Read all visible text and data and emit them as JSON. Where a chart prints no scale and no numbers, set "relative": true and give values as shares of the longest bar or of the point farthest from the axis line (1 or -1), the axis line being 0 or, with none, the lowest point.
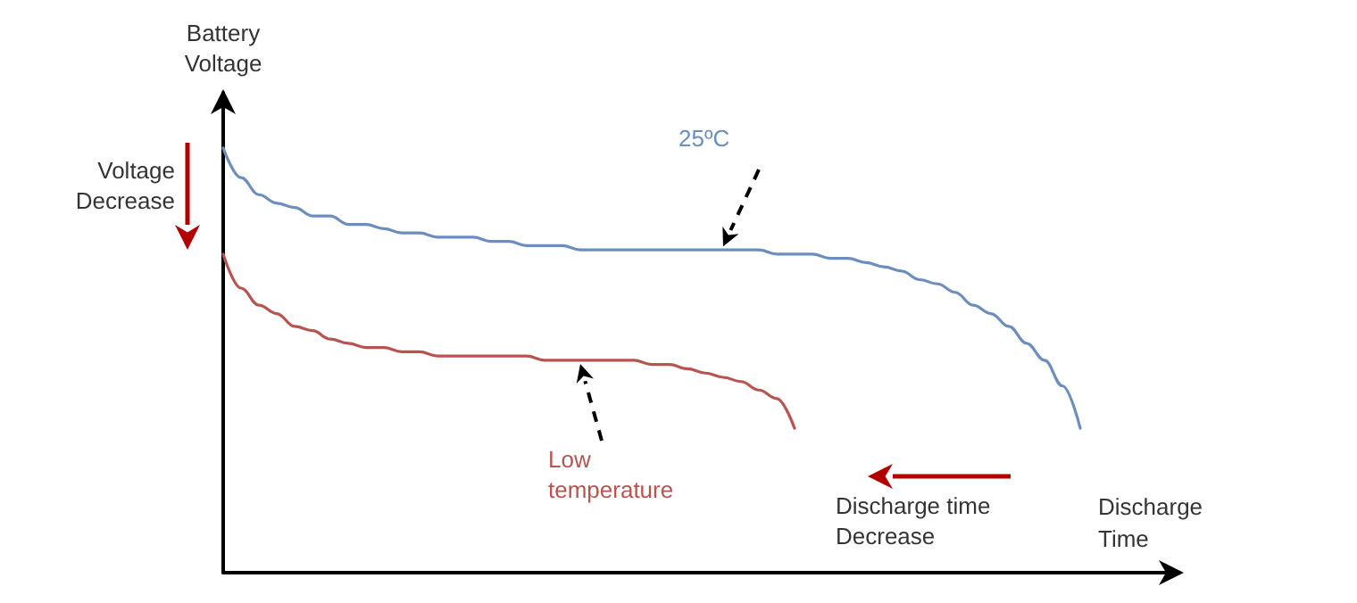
{
  "chart_data": {
    "type": "line",
    "relative": true,
    "xlabel": "Discharge Time",
    "ylabel": "Battery Voltage",
    "categories": [
      null,
      null,
      null,
      null,
      null,
      null,
      null,
      null,
      null,
      null,
      null,
      null,
      null,
      null,
      null,
      null,
      null,
      null,
      null,
      null,
      null,
      null,
      null,
      null,
      null,
      null,
      null,
      null,
      null,
      null,
      null,
      null,
      null,
      null,
      null,
      null,
      null,
      null,
      null,
      null,
      null,
      null,
      null,
      null,
      null,
      null,
      null,
      null,
      null
    ],
    "series": [
      {
        "name": "25ºC",
        "color": "#6c8ebf",
        "values": [
          1,
          0.93,
          0.89,
          0.87,
          0.86,
          0.84,
          0.84,
          0.82,
          0.82,
          0.81,
          0.8,
          0.8,
          0.79,
          0.79,
          0.79,
          0.78,
          0.78,
          0.77,
          0.77,
          0.77,
          0.76,
          0.76,
          0.76,
          0.76,
          0.76,
          0.76,
          0.76,
          0.76,
          0.76,
          0.76,
          0.76,
          0.75,
          0.75,
          0.75,
          0.74,
          0.74,
          0.73,
          0.72,
          0.71,
          0.69,
          0.68,
          0.66,
          0.63,
          0.61,
          0.58,
          0.54,
          0.5,
          0.44,
          0.34
        ]
      },
      {
        "name": "Low temperature",
        "color": "#b85450",
        "values": [
          0.75,
          0.67,
          0.63,
          0.61,
          0.58,
          0.57,
          0.55,
          0.54,
          0.53,
          0.53,
          0.52,
          0.52,
          0.51,
          0.51,
          0.51,
          0.51,
          0.51,
          0.51,
          0.5,
          0.5,
          0.5,
          0.5,
          0.5,
          0.5,
          0.49,
          0.49,
          0.48,
          0.47,
          0.46,
          0.45,
          0.43,
          0.41,
          0.34,
          null,
          null,
          null,
          null,
          null,
          null,
          null,
          null,
          null,
          null,
          null,
          null,
          null,
          null,
          null,
          null
        ]
      }
    ],
    "annotations": [
      "Voltage Decrease",
      "Discharge time Decrease"
    ],
    "grid": false,
    "legend": false,
    "marker": "none",
    "line_style": "solid"
  }
}
